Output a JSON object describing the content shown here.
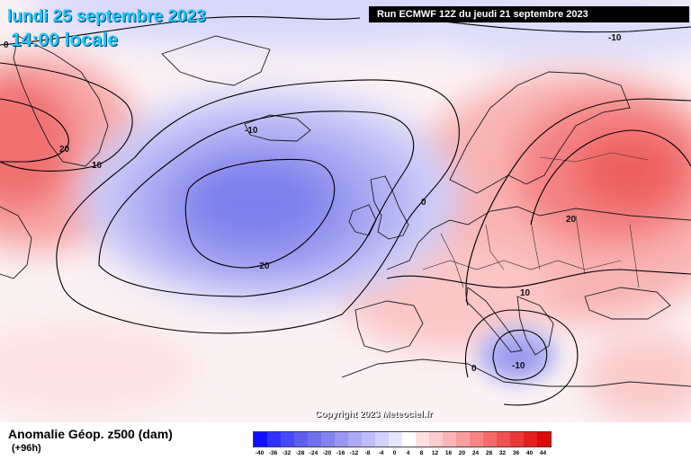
{
  "header": {
    "date_title": "lundi 25 septembre 2023",
    "local_time": "14:00 locale",
    "run_info": "Run ECMWF 12Z du jeudi 21 septembre 2023"
  },
  "footer": {
    "field_title": "Anomalie Géop. z500 (dam)",
    "lead_time": "(+96h)",
    "copyright": "Copyright 2023 Meteociel.fr"
  },
  "contour_labels": {
    "greenland_neg10": "-10",
    "azores_neg20": "-20",
    "arctic_neg10": "-10",
    "canada_20": "20",
    "canada_10": "10",
    "top_left_0": "0",
    "channel_0": "0",
    "alps_10": "10",
    "scandinavia_20": "20",
    "ionian_neg10": "-10",
    "libya_0": "0"
  },
  "colorbar": {
    "ticks": [
      "-40",
      "-36",
      "-32",
      "-28",
      "-24",
      "-20",
      "-16",
      "-12",
      "-8",
      "-4",
      "0",
      "4",
      "8",
      "12",
      "16",
      "20",
      "24",
      "28",
      "32",
      "36",
      "40",
      "44"
    ],
    "colors": [
      "#1010ff",
      "#3030ff",
      "#4848ff",
      "#5e5ef0",
      "#7070ec",
      "#8484ee",
      "#9898f2",
      "#aaaaf6",
      "#bebefa",
      "#d2d2fc",
      "#e6e6fe",
      "#ffffff",
      "#fee0e0",
      "#fccccc",
      "#fab6b6",
      "#f89e9e",
      "#f68686",
      "#f26c6c",
      "#ee5252",
      "#ea3838",
      "#e41e1e",
      "#dc0a0a"
    ]
  },
  "colors": {
    "land_outline": "#1c1c1c",
    "contour": "#000000",
    "title_text": "#22c8ff"
  }
}
